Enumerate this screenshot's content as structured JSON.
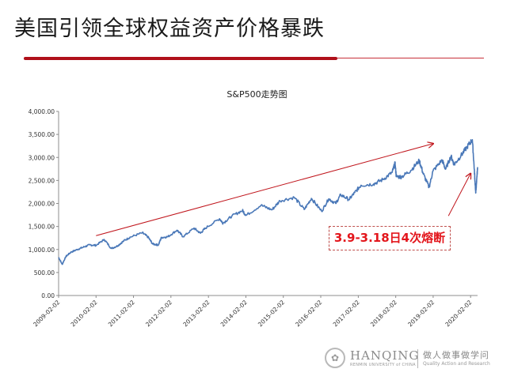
{
  "slide": {
    "title": "美国引领全球权益资产价格暴跌",
    "accent_color": "#b0101a"
  },
  "callout": {
    "text": "3.9-3.18日4次熔断",
    "color": "#e3161c"
  },
  "footer": {
    "seal_icon": "college-seal-icon",
    "brand": "HANQING",
    "brand_sub": "RENMIN UNIVERSITY of CHINA",
    "slogan_cn": "做人做事做学问",
    "slogan_en": "Quality Action and Research"
  },
  "chart_data": {
    "type": "line",
    "title": "S&P500走势图",
    "xlabel": "",
    "ylabel": "",
    "ylim": [
      0,
      4000
    ],
    "y_ticks": [
      "0.00",
      "500.00",
      "1,000.00",
      "1,500.00",
      "2,000.00",
      "2,500.00",
      "3,000.00",
      "3,500.00",
      "4,000.00"
    ],
    "x_ticks": [
      "2009-02-02",
      "2010-02-02",
      "2011-02-02",
      "2012-02-02",
      "2013-02-02",
      "2014-02-02",
      "2015-02-02",
      "2016-02-02",
      "2017-02-02",
      "2018-02-02",
      "2019-02-02",
      "2020-02-02"
    ],
    "xlim": [
      "2009-02-02",
      "2020-04-10"
    ],
    "grid": false,
    "legend": "none",
    "line_color": "#4a78b8",
    "arrow_color": "#c0151c",
    "series": [
      {
        "x": [
          "2009-02-02",
          "2009-03-09",
          "2009-04-15",
          "2009-06-01",
          "2009-08-03",
          "2009-10-01",
          "2009-12-01",
          "2010-02-02",
          "2010-04-23",
          "2010-07-02",
          "2010-09-01",
          "2010-11-01",
          "2011-01-03",
          "2011-04-29",
          "2011-06-24",
          "2011-08-08",
          "2011-10-03",
          "2011-11-01",
          "2012-01-03",
          "2012-04-02",
          "2012-06-01",
          "2012-09-14",
          "2012-11-15",
          "2013-01-02",
          "2013-05-21",
          "2013-06-24",
          "2013-09-18",
          "2013-12-31",
          "2014-02-03",
          "2014-06-30",
          "2014-10-15",
          "2014-12-31",
          "2015-05-21",
          "2015-08-25",
          "2015-11-03",
          "2016-02-11",
          "2016-04-20",
          "2016-06-27",
          "2016-08-15",
          "2016-11-04",
          "2016-12-30",
          "2017-03-01",
          "2017-06-30",
          "2017-09-29",
          "2017-12-29",
          "2018-01-26",
          "2018-02-08",
          "2018-04-02",
          "2018-06-29",
          "2018-09-20",
          "2018-10-29",
          "2018-12-24",
          "2019-01-31",
          "2019-04-30",
          "2019-06-03",
          "2019-07-26",
          "2019-08-26",
          "2019-10-31",
          "2019-12-31",
          "2020-02-19",
          "2020-03-09",
          "2020-03-18",
          "2020-03-23",
          "2020-04-01",
          "2020-04-10"
        ],
        "y": [
          830,
          677,
          850,
          940,
          1000,
          1050,
          1100,
          1090,
          1217,
          1022,
          1080,
          1190,
          1270,
          1363,
          1270,
          1120,
          1099,
          1260,
          1277,
          1419,
          1278,
          1465,
          1353,
          1462,
          1669,
          1573,
          1725,
          1848,
          1741,
          1960,
          1862,
          2059,
          2131,
          1868,
          2110,
          1829,
          2102,
          2000,
          2190,
          2085,
          2239,
          2396,
          2423,
          2519,
          2674,
          2873,
          2581,
          2581,
          2718,
          2931,
          2641,
          2351,
          2704,
          2946,
          2744,
          3026,
          2847,
          3038,
          3231,
          3386,
          2746,
          2398,
          2237,
          2470,
          2790
        ]
      }
    ],
    "annotations": [
      {
        "type": "trend-arrow",
        "from": [
          "2010-02-02",
          1300
        ],
        "to": [
          "2019-02-02",
          3300
        ]
      },
      {
        "type": "pointer-arrow",
        "from": [
          "2019-07-01",
          1730
        ],
        "to": [
          "2020-02-02",
          2650
        ]
      }
    ]
  }
}
